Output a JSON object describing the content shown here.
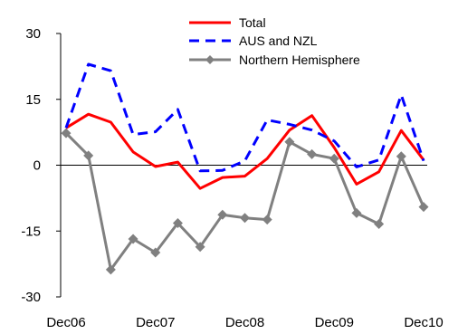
{
  "chart_data": {
    "type": "line",
    "title": "",
    "xlabel": "",
    "ylabel": "",
    "ylim": [
      -30,
      30
    ],
    "yticks": [
      30,
      15,
      0,
      -15,
      -30
    ],
    "xtick_labels": [
      "Dec06",
      "Dec07",
      "Dec08",
      "Dec09",
      "Dec10"
    ],
    "xtick_positions": [
      0,
      4,
      8,
      12,
      16
    ],
    "x_points": 17,
    "legend_position": "top-center",
    "series": [
      {
        "name": "Total",
        "color": "#ff0000",
        "style": "solid",
        "marker": "none",
        "values": [
          8.5,
          11.6,
          9.8,
          3.0,
          -0.3,
          0.7,
          -5.3,
          -2.8,
          -2.5,
          1.5,
          8.0,
          11.3,
          4.0,
          -4.3,
          -1.5,
          7.9,
          1.2
        ]
      },
      {
        "name": "AUS and NZL",
        "color": "#0000ff",
        "style": "dashed",
        "marker": "none",
        "values": [
          8.5,
          23.0,
          21.5,
          7.0,
          7.6,
          12.7,
          -1.3,
          -1.2,
          1.0,
          10.3,
          9.3,
          8.0,
          5.5,
          -0.4,
          1.2,
          16.0,
          1.0
        ]
      },
      {
        "name": "Northern Hemisphere",
        "color": "#808080",
        "style": "solid",
        "marker": "diamond",
        "values": [
          7.3,
          2.2,
          -23.8,
          -16.8,
          -19.9,
          -13.2,
          -18.6,
          -11.3,
          -12.0,
          -12.4,
          5.3,
          2.5,
          1.5,
          -10.9,
          -13.4,
          2.0,
          -9.5
        ]
      }
    ]
  }
}
